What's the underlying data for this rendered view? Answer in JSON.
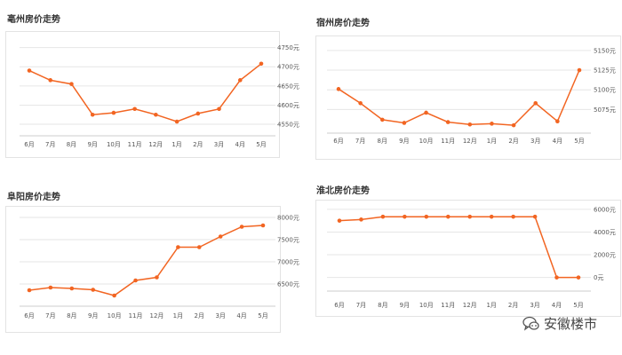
{
  "chart_data": [
    {
      "type": "line",
      "title": "亳州房价走势",
      "categories": [
        "6月",
        "7月",
        "8月",
        "9月",
        "10月",
        "11月",
        "12月",
        "1月",
        "2月",
        "3月",
        "4月",
        "5月"
      ],
      "values": [
        4690,
        4665,
        4655,
        4575,
        4580,
        4590,
        4575,
        4557,
        4578,
        4590,
        4665,
        4708
      ],
      "ylim": [
        4520,
        4770
      ],
      "yticks": [
        4550,
        4600,
        4650,
        4700,
        4750
      ],
      "ytick_labels": [
        "4550元",
        "4600元",
        "4650元",
        "4700元",
        "4750元"
      ],
      "color": "#f26522",
      "grid": true
    },
    {
      "type": "line",
      "title": "宿州房价走势",
      "categories": [
        "6月",
        "7月",
        "8月",
        "9月",
        "10月",
        "11月",
        "12月",
        "1月",
        "2月",
        "3月",
        "4月",
        "5月"
      ],
      "values": [
        5101,
        5083,
        5062,
        5058,
        5071,
        5059,
        5056,
        5057,
        5055,
        5083,
        5060,
        5125
      ],
      "ylim": [
        5045,
        5160
      ],
      "yticks": [
        5075,
        5100,
        5125,
        5150
      ],
      "ytick_labels": [
        "5075元",
        "5100元",
        "5125元",
        "5150元"
      ],
      "color": "#f26522",
      "grid": true
    },
    {
      "type": "line",
      "title": "阜阳房价走势",
      "categories": [
        "6月",
        "7月",
        "8月",
        "9月",
        "10月",
        "11月",
        "12月",
        "1月",
        "2月",
        "3月",
        "4月",
        "5月"
      ],
      "values": [
        6360,
        6420,
        6400,
        6370,
        6240,
        6580,
        6650,
        7330,
        7330,
        7570,
        7790,
        7820
      ],
      "ylim": [
        6000,
        8100
      ],
      "yticks": [
        6500,
        7000,
        7500,
        8000
      ],
      "ytick_labels": [
        "6500元",
        "7000元",
        "7500元",
        "8000元"
      ],
      "color": "#f26522",
      "grid": true
    },
    {
      "type": "line",
      "title": "淮北房价走势",
      "categories": [
        "6月",
        "7月",
        "8月",
        "9月",
        "10月",
        "11月",
        "12月",
        "1月",
        "2月",
        "3月",
        "4月",
        "5月"
      ],
      "values": [
        5000,
        5100,
        5350,
        5350,
        5350,
        5350,
        5350,
        5350,
        5350,
        5350,
        0,
        0
      ],
      "ylim": [
        -1200,
        6300
      ],
      "yticks": [
        0,
        2000,
        4000,
        6000
      ],
      "ytick_labels": [
        "0元",
        "2000元",
        "4000元",
        "6000元"
      ],
      "color": "#f26522",
      "grid": true
    }
  ],
  "watermark": {
    "text": "安徽楼市",
    "icon": "wechat-bubble-icon"
  }
}
